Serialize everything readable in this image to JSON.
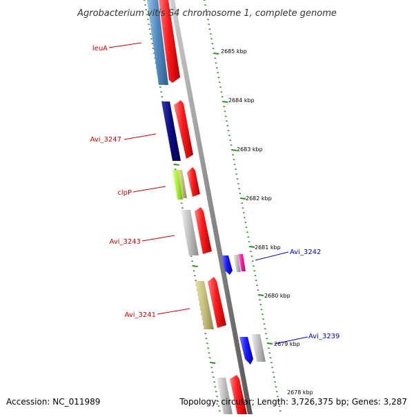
{
  "title": "Agrobacterium vitis S4 chromosome 1, complete genome",
  "footer": {
    "accession": "Accession: NC_011989",
    "summary": "Topology: circular; Length: 3,726,375 bp; Genes: 3,287"
  },
  "kbp_labels": [
    "2685 kbp",
    "2684 kbp",
    "2683 kbp",
    "2682 kbp",
    "2681 kbp",
    "2680 kbp",
    "2679 kbp",
    "2678 kbp"
  ],
  "gene_labels": {
    "leuA": "leuA",
    "avi3247": "Avi_3247",
    "clpP": "clpP",
    "avi3243": "Avi_3243",
    "avi3241": "Avi_3241",
    "avi3242": "Avi_3242",
    "avi3239": "Avi_3239"
  },
  "colors": {
    "forward_label": "#cc0000",
    "reverse_label": "#0000cc",
    "tick": "#2e8b22",
    "backbone": "#8a8a8a",
    "red": "#ff1a1a",
    "steelblue": "#4f88c0",
    "navy": "#0a0a80",
    "lime": "#a6f032",
    "tan": "#c4bd7a",
    "grey": "#bdbdbd",
    "blue": "#1a1aff",
    "magenta": "#ff1aa8"
  }
}
